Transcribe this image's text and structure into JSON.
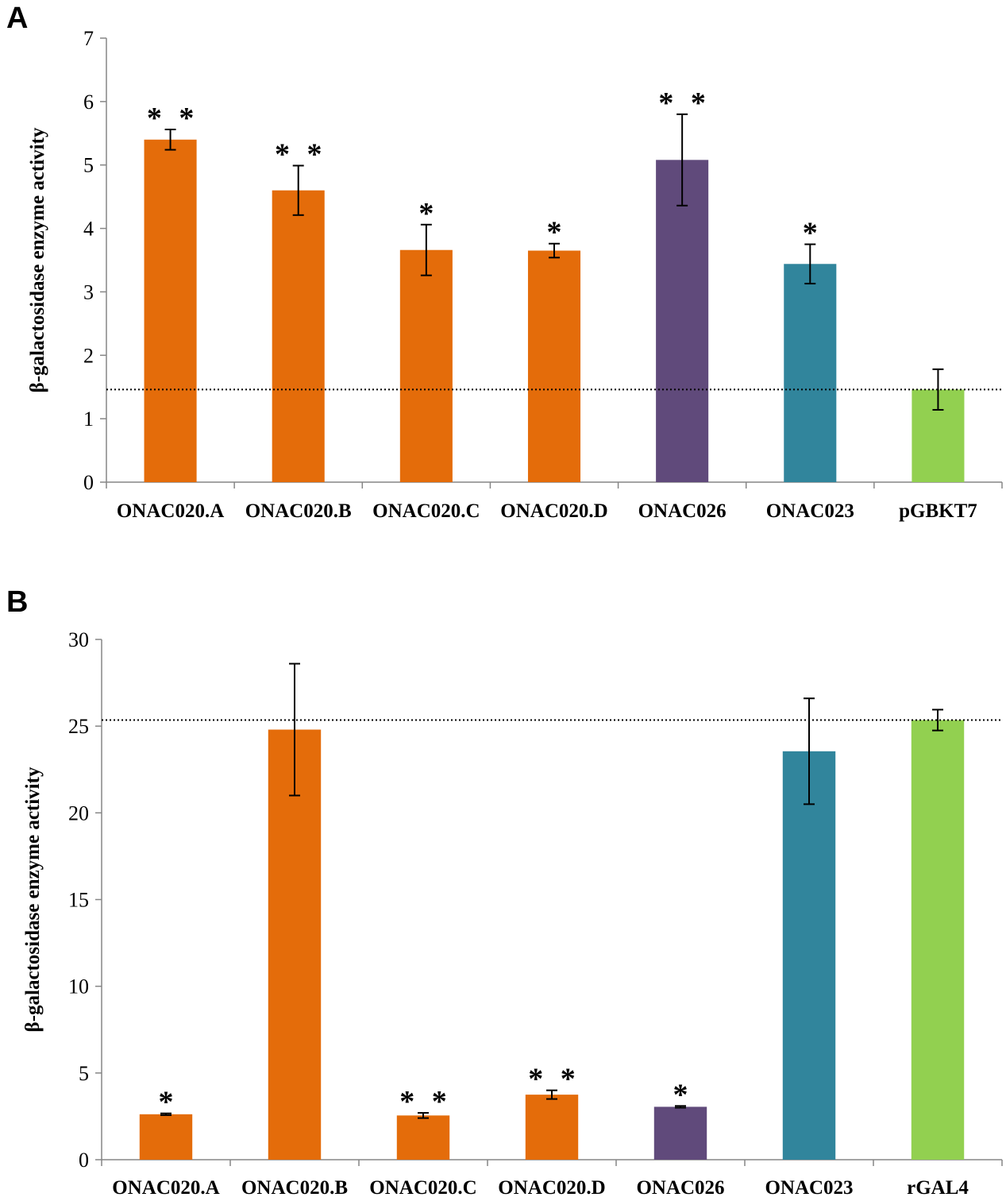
{
  "chart_data": [
    {
      "id": "A",
      "panel_label": "A",
      "type": "bar",
      "ylabel": "β-galactosidase enzyme activity",
      "ylim": [
        0,
        7
      ],
      "yticks": [
        0,
        1,
        2,
        3,
        4,
        5,
        6,
        7
      ],
      "categories": [
        "ONAC020.A",
        "ONAC020.B",
        "ONAC020.C",
        "ONAC020.D",
        "ONAC026",
        "ONAC023",
        "pGBKT7"
      ],
      "values": [
        5.4,
        4.6,
        3.66,
        3.65,
        5.08,
        3.44,
        1.46
      ],
      "errors": [
        0.16,
        0.39,
        0.4,
        0.11,
        0.72,
        0.31,
        0.32
      ],
      "significance": [
        "* *",
        "* *",
        "*",
        "*",
        "* *",
        "*",
        ""
      ],
      "colors": [
        "#e46c0a",
        "#e46c0a",
        "#e46c0a",
        "#e46c0a",
        "#604a7b",
        "#31859c",
        "#92d050"
      ],
      "reference_line": 1.46
    },
    {
      "id": "B",
      "panel_label": "B",
      "type": "bar",
      "ylabel": "β-galactosidase enzyme activity",
      "ylim": [
        0,
        30
      ],
      "yticks": [
        0,
        5,
        10,
        15,
        20,
        25,
        30
      ],
      "categories": [
        "ONAC020.A",
        "ONAC020.B",
        "ONAC020.C",
        "ONAC020.D",
        "ONAC026",
        "ONAC023",
        "rGAL4"
      ],
      "values": [
        2.62,
        24.8,
        2.55,
        3.75,
        3.05,
        23.55,
        25.35
      ],
      "errors": [
        0.05,
        3.8,
        0.15,
        0.25,
        0.05,
        3.05,
        0.6
      ],
      "significance": [
        "*",
        "",
        "* *",
        "* *",
        "*",
        "",
        ""
      ],
      "colors": [
        "#e46c0a",
        "#e46c0a",
        "#e46c0a",
        "#e46c0a",
        "#604a7b",
        "#31859c",
        "#92d050"
      ],
      "reference_line": 25.35
    }
  ]
}
